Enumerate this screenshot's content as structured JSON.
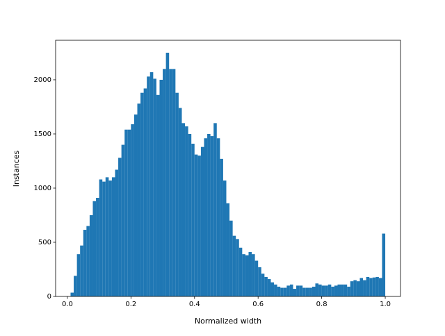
{
  "chart_data": {
    "type": "histogram",
    "xlabel": "Normalized width",
    "ylabel": "Instances",
    "color": "#1f77b4",
    "bins": [
      0,
      0.01,
      0.02,
      0.03,
      0.04,
      0.05,
      0.06,
      0.07,
      0.08,
      0.09,
      0.1,
      0.11,
      0.12,
      0.13,
      0.14,
      0.15,
      0.16,
      0.17,
      0.18,
      0.19,
      0.2,
      0.21,
      0.22,
      0.23,
      0.24,
      0.25,
      0.26,
      0.27,
      0.28,
      0.29,
      0.3,
      0.31,
      0.32,
      0.33,
      0.34,
      0.35,
      0.36,
      0.37,
      0.38,
      0.39,
      0.4,
      0.41,
      0.42,
      0.43,
      0.44,
      0.45,
      0.46,
      0.47,
      0.48,
      0.49,
      0.5,
      0.51,
      0.52,
      0.53,
      0.54,
      0.55,
      0.56,
      0.57,
      0.58,
      0.59,
      0.6,
      0.61,
      0.62,
      0.63,
      0.64,
      0.65,
      0.66,
      0.67,
      0.68,
      0.69,
      0.7,
      0.71,
      0.72,
      0.73,
      0.74,
      0.75,
      0.76,
      0.77,
      0.78,
      0.79,
      0.8,
      0.81,
      0.82,
      0.83,
      0.84,
      0.85,
      0.86,
      0.87,
      0.88,
      0.89,
      0.9,
      0.91,
      0.92,
      0.93,
      0.94,
      0.95,
      0.96,
      0.97,
      0.98,
      0.99,
      1
    ],
    "values": [
      0,
      35,
      190,
      390,
      470,
      615,
      650,
      750,
      880,
      910,
      1080,
      1060,
      1100,
      1070,
      1100,
      1170,
      1280,
      1400,
      1540,
      1540,
      1590,
      1680,
      1780,
      1880,
      1920,
      2030,
      2070,
      2010,
      1860,
      2000,
      2100,
      2250,
      2100,
      2100,
      1880,
      1740,
      1600,
      1570,
      1500,
      1410,
      1310,
      1300,
      1380,
      1460,
      1500,
      1480,
      1600,
      1460,
      1270,
      1070,
      860,
      700,
      560,
      530,
      450,
      390,
      380,
      410,
      390,
      330,
      270,
      210,
      180,
      160,
      130,
      110,
      90,
      80,
      80,
      100,
      110,
      70,
      100,
      100,
      80,
      80,
      80,
      90,
      120,
      110,
      100,
      100,
      110,
      90,
      100,
      110,
      110,
      110,
      90,
      140,
      150,
      140,
      170,
      150,
      180,
      170,
      175,
      180,
      170,
      580
    ],
    "xlim": [
      -0.037,
      1.048
    ],
    "ylim": [
      0,
      2365
    ],
    "xticks": [
      {
        "value": 0,
        "label": "0.0"
      },
      {
        "value": 0.2,
        "label": "0.2"
      },
      {
        "value": 0.4,
        "label": "0.4"
      },
      {
        "value": 0.6,
        "label": "0.6"
      },
      {
        "value": 0.8,
        "label": "0.8"
      },
      {
        "value": 1,
        "label": "1.0"
      }
    ],
    "yticks": [
      0,
      500,
      1000,
      1500,
      2000
    ]
  }
}
